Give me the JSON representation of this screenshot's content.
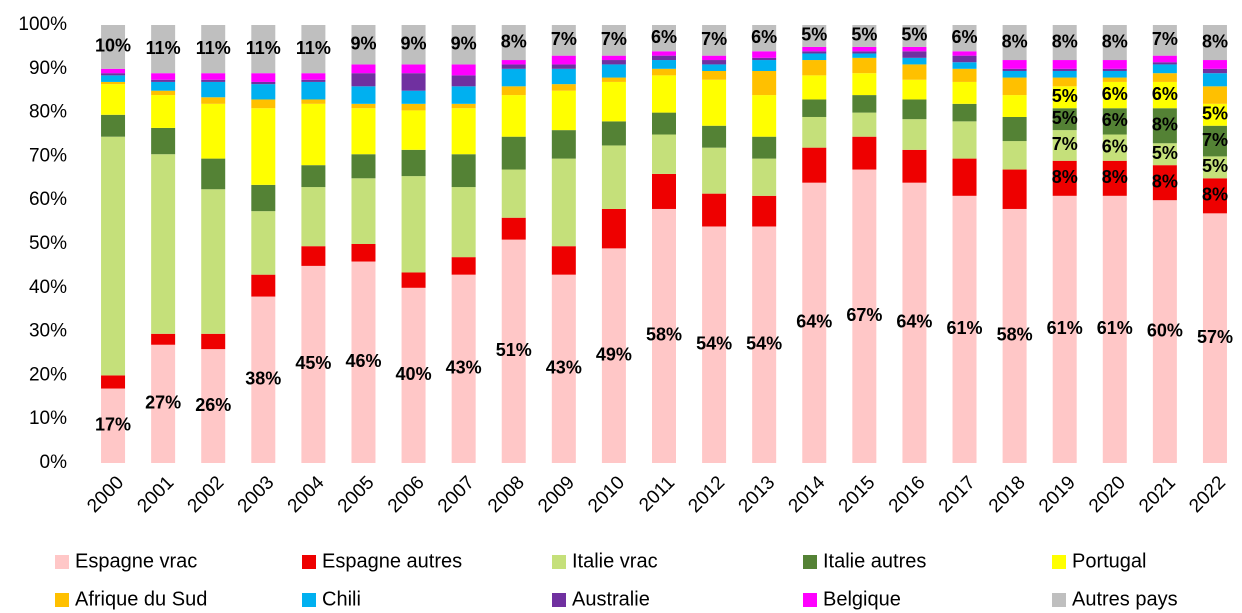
{
  "chart_data": {
    "type": "stacked_bar",
    "categories": [
      "2000",
      "2001",
      "2002",
      "2003",
      "2004",
      "2005",
      "2006",
      "2007",
      "2008",
      "2009",
      "2010",
      "2011",
      "2012",
      "2013",
      "2014",
      "2015",
      "2016",
      "2017",
      "2018",
      "2019",
      "2020",
      "2021",
      "2022"
    ],
    "ylim": [
      0,
      100
    ],
    "yticks": [
      {
        "value": 0,
        "label": "0%"
      },
      {
        "value": 10,
        "label": "10%"
      },
      {
        "value": 20,
        "label": "20%"
      },
      {
        "value": 30,
        "label": "30%"
      },
      {
        "value": 40,
        "label": "40%"
      },
      {
        "value": 50,
        "label": "50%"
      },
      {
        "value": 60,
        "label": "60%"
      },
      {
        "value": 70,
        "label": "70%"
      },
      {
        "value": 80,
        "label": "80%"
      },
      {
        "value": 90,
        "label": "90%"
      },
      {
        "value": 100,
        "label": "100%"
      }
    ],
    "legend": "bottom",
    "series": [
      {
        "name": "Espagne vrac",
        "color": "#ffc7c7",
        "values": [
          17,
          27,
          26,
          38,
          45,
          46,
          40,
          43,
          51,
          43,
          49,
          58,
          54,
          54,
          64,
          67,
          64,
          61,
          58,
          61,
          61,
          60,
          57
        ],
        "value_labels": [
          "17%",
          "27%",
          "26%",
          "38%",
          "45%",
          "46%",
          "40%",
          "43%",
          "51%",
          "43%",
          "49%",
          "58%",
          "54%",
          "54%",
          "64%",
          "67%",
          "64%",
          "61%",
          "58%",
          "61%",
          "61%",
          "60%",
          "57%"
        ]
      },
      {
        "name": "Espagne autres",
        "color": "#ee0000",
        "values": [
          3,
          2.5,
          3.5,
          5,
          4.5,
          4,
          3.5,
          4,
          5,
          6.5,
          9,
          8,
          7.5,
          7,
          8,
          7.5,
          7.5,
          8.5,
          9,
          8,
          8,
          8,
          8
        ],
        "value_labels": [
          null,
          null,
          null,
          null,
          null,
          null,
          null,
          null,
          null,
          null,
          null,
          null,
          null,
          null,
          null,
          null,
          null,
          null,
          null,
          "8%",
          "8%",
          "8%",
          "8%"
        ]
      },
      {
        "name": "Italie vrac",
        "color": "#c5e07a",
        "values": [
          54.5,
          41,
          33,
          14.5,
          13.5,
          15,
          22,
          16,
          11,
          20,
          14.5,
          9,
          10.5,
          8.5,
          7,
          5.5,
          7,
          8.5,
          6.5,
          7,
          6,
          5,
          5
        ],
        "value_labels": [
          null,
          null,
          null,
          null,
          null,
          null,
          null,
          null,
          null,
          null,
          null,
          null,
          null,
          null,
          null,
          null,
          null,
          null,
          null,
          "7%",
          "6%",
          "5%",
          "5%"
        ]
      },
      {
        "name": "Italie autres",
        "color": "#548235",
        "values": [
          5,
          6,
          7,
          6,
          5,
          5.5,
          6,
          7.5,
          7.5,
          6.5,
          5.5,
          5,
          5,
          5,
          4,
          4,
          4.5,
          4,
          5.5,
          5,
          6,
          8,
          7
        ],
        "value_labels": [
          null,
          null,
          null,
          null,
          null,
          null,
          null,
          null,
          null,
          null,
          null,
          null,
          null,
          null,
          null,
          null,
          null,
          null,
          null,
          "5%",
          "6%",
          "8%",
          "7%"
        ]
      },
      {
        "name": "Portugal",
        "color": "#ffff00",
        "values": [
          7,
          7.5,
          12.5,
          17.5,
          14,
          10.5,
          9,
          10.5,
          9.5,
          9,
          9,
          8.5,
          10.5,
          9.5,
          5.5,
          5,
          4.5,
          5,
          5,
          5,
          6,
          6,
          5
        ],
        "value_labels": [
          null,
          null,
          null,
          null,
          null,
          null,
          null,
          null,
          null,
          null,
          null,
          null,
          null,
          null,
          null,
          null,
          null,
          null,
          null,
          "5%",
          "6%",
          "6%",
          "5%"
        ]
      },
      {
        "name": "Afrique du Sud",
        "color": "#ffc000",
        "values": [
          0.5,
          1,
          1.5,
          2,
          1,
          1,
          1.5,
          1,
          2,
          1.5,
          1,
          1.5,
          2,
          5.5,
          3.5,
          3.5,
          3.5,
          3,
          4,
          2,
          1,
          2,
          4
        ]
      },
      {
        "name": "Chili",
        "color": "#00b0f0",
        "values": [
          1.5,
          2,
          3.5,
          3.5,
          4,
          4,
          3,
          4,
          4,
          3.5,
          3,
          2,
          1.5,
          2.5,
          1.5,
          1,
          1.5,
          1.5,
          1.5,
          1.5,
          1.5,
          2,
          3
        ]
      },
      {
        "name": "Australie",
        "color": "#7030a0",
        "values": [
          0.5,
          0.5,
          0.5,
          0.5,
          0.5,
          3,
          4,
          2.5,
          1,
          1,
          1,
          1,
          1,
          0.5,
          0.5,
          0.5,
          1.5,
          1.5,
          0.5,
          0.5,
          0.5,
          0.5,
          1
        ]
      },
      {
        "name": "Belgique",
        "color": "#ff00ff",
        "values": [
          1,
          1.5,
          1.5,
          2,
          1.5,
          2,
          2,
          2.5,
          1,
          2,
          1,
          1,
          1,
          1.5,
          1,
          1,
          1,
          1,
          2,
          2,
          2,
          1.5,
          2
        ]
      },
      {
        "name": "Autres pays",
        "color": "#bfbfbf",
        "values": [
          10,
          11,
          11,
          11,
          11,
          9,
          9,
          9,
          8,
          7,
          7,
          6,
          7,
          6,
          5,
          5,
          5,
          6,
          8,
          8,
          8,
          7,
          8
        ],
        "value_labels": [
          "10%",
          "11%",
          "11%",
          "11%",
          "11%",
          "9%",
          "9%",
          "9%",
          "8%",
          "7%",
          "7%",
          "6%",
          "7%",
          "6%",
          "5%",
          "5%",
          "5%",
          "6%",
          "8%",
          "8%",
          "8%",
          "7%",
          "8%"
        ]
      }
    ]
  }
}
